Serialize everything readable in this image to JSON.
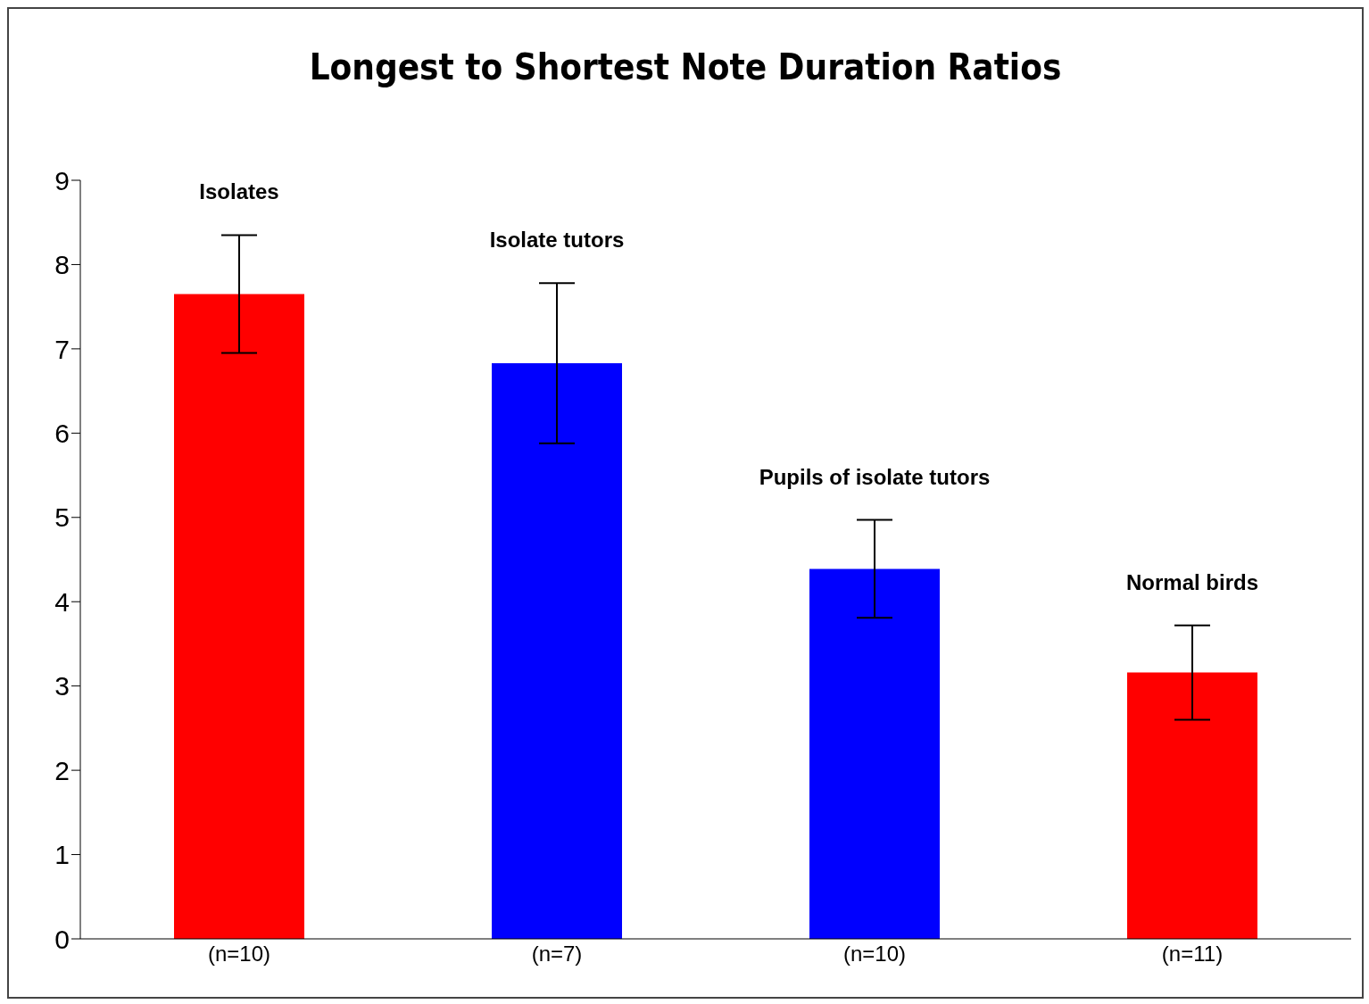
{
  "chart_data": {
    "type": "bar",
    "title": "Longest to Shortest Note Duration Ratios",
    "categories": [
      "(n=10)",
      "(n=7)",
      "(n=10)",
      "(n=11)"
    ],
    "values": [
      7.65,
      6.83,
      4.39,
      3.16
    ],
    "errors": [
      0.7,
      0.95,
      0.58,
      0.56
    ],
    "colors": [
      "#ff0000",
      "#0000ff",
      "#0000ff",
      "#ff0000"
    ],
    "ylim": [
      0,
      9
    ],
    "yticks": [
      0,
      1,
      2,
      3,
      4,
      5,
      6,
      7,
      8,
      9
    ],
    "grid": false,
    "annotations": [
      "Isolates",
      "Isolate tutors",
      "Pupils of isolate tutors",
      "Normal birds"
    ]
  }
}
